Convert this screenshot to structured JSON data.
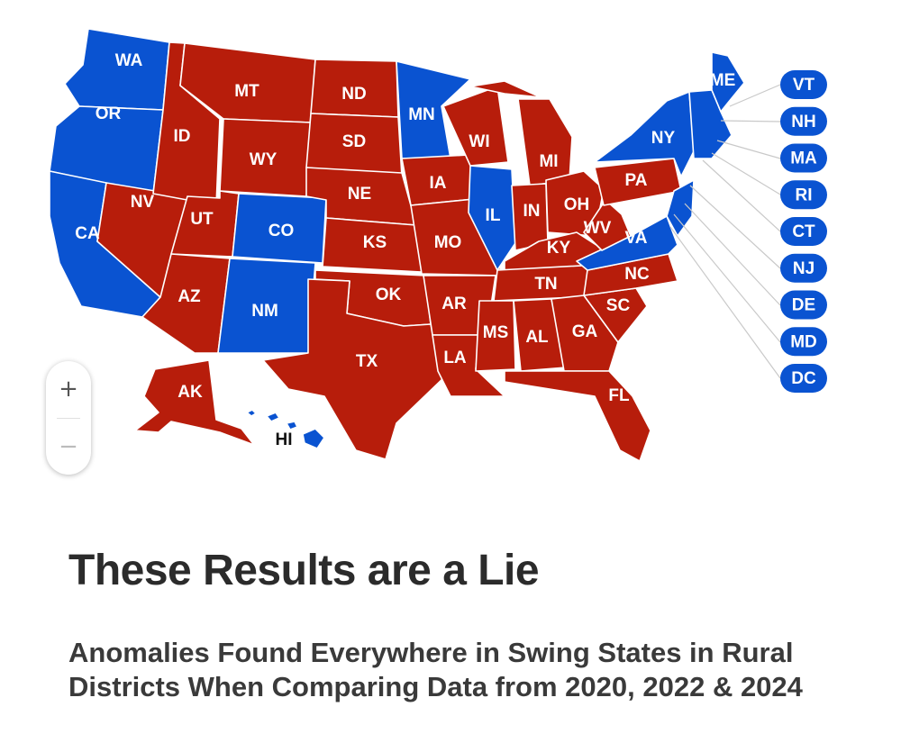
{
  "colors": {
    "republican": "#b71d0b",
    "democrat": "#0a53d1",
    "border": "#ffffff"
  },
  "states": {
    "WA": "WA",
    "OR": "OR",
    "CA": "CA",
    "NV": "NV",
    "ID": "ID",
    "MT": "MT",
    "WY": "WY",
    "UT": "UT",
    "CO": "CO",
    "AZ": "AZ",
    "NM": "NM",
    "ND": "ND",
    "SD": "SD",
    "NE": "NE",
    "KS": "KS",
    "OK": "OK",
    "TX": "TX",
    "MN": "MN",
    "IA": "IA",
    "MO": "MO",
    "AR": "AR",
    "LA": "LA",
    "WI": "WI",
    "IL": "IL",
    "MI": "MI",
    "IN": "IN",
    "OH": "OH",
    "KY": "KY",
    "TN": "TN",
    "MS": "MS",
    "AL": "AL",
    "GA": "GA",
    "FL": "FL",
    "SC": "SC",
    "NC": "NC",
    "VA": "VA",
    "WV": "WV",
    "PA": "PA",
    "NY": "NY",
    "ME": "ME",
    "AK": "AK",
    "HI": "HI"
  },
  "state_winners": {
    "WA": "democrat",
    "OR": "democrat",
    "CA": "democrat",
    "NV": "republican",
    "ID": "republican",
    "MT": "republican",
    "WY": "republican",
    "UT": "republican",
    "CO": "democrat",
    "AZ": "republican",
    "NM": "democrat",
    "ND": "republican",
    "SD": "republican",
    "NE": "republican",
    "KS": "republican",
    "OK": "republican",
    "TX": "republican",
    "MN": "democrat",
    "IA": "republican",
    "MO": "republican",
    "AR": "republican",
    "LA": "republican",
    "WI": "republican",
    "IL": "democrat",
    "MI": "republican",
    "IN": "republican",
    "OH": "republican",
    "KY": "republican",
    "TN": "republican",
    "MS": "republican",
    "AL": "republican",
    "GA": "republican",
    "FL": "republican",
    "SC": "republican",
    "NC": "republican",
    "VA": "democrat",
    "WV": "republican",
    "PA": "republican",
    "NY": "democrat",
    "ME": "democrat",
    "AK": "republican",
    "HI": "democrat"
  },
  "small_states": [
    "VT",
    "NH",
    "MA",
    "RI",
    "CT",
    "NJ",
    "DE",
    "MD",
    "DC"
  ],
  "zoom": {
    "in": "+",
    "out": "−"
  },
  "headline": "These Results are a Lie",
  "subheadline": "Anomalies Found Everywhere in Swing States in Rural Districts When Comparing Data from 2020, 2022 & 2024"
}
